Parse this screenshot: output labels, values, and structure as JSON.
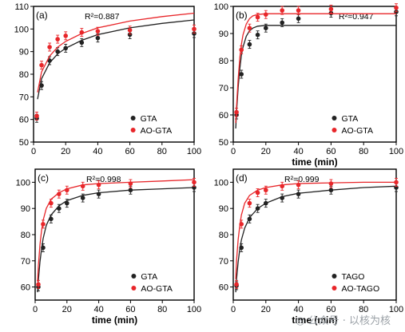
{
  "colors": {
    "black": "#222222",
    "red": "#e8262a"
  },
  "watermark": {
    "icon": "wechat-icon",
    "text": "公众号 · 以核为核"
  },
  "chart_data": [
    {
      "type": "scatter",
      "panel": "(a)",
      "r2": "R²=0.887",
      "xlabel": "",
      "ylabel": "",
      "xlim": [
        0,
        100
      ],
      "ylim": [
        50,
        110
      ],
      "xticks": [
        0,
        20,
        40,
        60,
        80,
        100
      ],
      "yticks": [
        50,
        60,
        70,
        80,
        90,
        100,
        110
      ],
      "legend": "bottom-right",
      "series": [
        {
          "name": "GTA",
          "color": "#222222",
          "x": [
            2,
            5,
            10,
            15,
            20,
            30,
            40,
            60,
            100
          ],
          "y": [
            60.5,
            75,
            86,
            90,
            91.5,
            94,
            96,
            97.5,
            98
          ],
          "fit_x": [
            2.5,
            5,
            10,
            15,
            20,
            30,
            40,
            60,
            80,
            100
          ],
          "fit_y": [
            69,
            78,
            85,
            89,
            91.5,
            95,
            97.5,
            100.5,
            102.5,
            104
          ]
        },
        {
          "name": "AO-GTA",
          "color": "#e8262a",
          "x": [
            2,
            5,
            10,
            15,
            20,
            30,
            40,
            60,
            100
          ],
          "y": [
            61.5,
            84,
            92,
            95.5,
            97,
            98.5,
            99,
            99.5,
            100
          ],
          "fit_x": [
            2.5,
            5,
            10,
            15,
            20,
            30,
            40,
            60,
            80,
            100
          ],
          "fit_y": [
            72,
            81,
            88,
            92,
            94.5,
            98,
            100.5,
            103.5,
            105.5,
            107
          ]
        }
      ]
    },
    {
      "type": "scatter",
      "panel": "(b)",
      "r2": "R²=0.947",
      "xlabel": "time (min)",
      "ylabel": "",
      "xlim": [
        0,
        100
      ],
      "ylim": [
        50,
        100
      ],
      "xticks": [
        0,
        20,
        40,
        60,
        80,
        100
      ],
      "yticks": [
        50,
        60,
        70,
        80,
        90,
        100
      ],
      "legend": "bottom-right",
      "series": [
        {
          "name": "GTA",
          "color": "#222222",
          "x": [
            2,
            5,
            10,
            15,
            20,
            30,
            40,
            60,
            100
          ],
          "y": [
            60,
            75,
            86,
            89.5,
            92,
            94,
            95.5,
            97.5,
            98
          ],
          "fit_x": [
            1.5,
            2,
            3,
            4,
            5,
            6,
            8,
            10,
            12,
            15,
            20,
            30,
            50,
            100
          ],
          "fit_y": [
            55,
            61,
            70,
            77,
            82,
            85,
            89,
            91,
            92,
            92.7,
            93,
            93,
            93,
            93
          ]
        },
        {
          "name": "AO-GTA",
          "color": "#e8262a",
          "x": [
            2,
            5,
            10,
            15,
            20,
            30,
            40,
            60,
            100
          ],
          "y": [
            61,
            84,
            92,
            96,
            97,
            98.5,
            98.5,
            99,
            99.5
          ],
          "fit_x": [
            1.5,
            2,
            3,
            4,
            5,
            6,
            8,
            10,
            12,
            15,
            20,
            30,
            50,
            100
          ],
          "fit_y": [
            57,
            63,
            73,
            81,
            86,
            89.5,
            93.5,
            95.5,
            96.5,
            97,
            97.3,
            97.3,
            97.3,
            97.3
          ]
        }
      ]
    },
    {
      "type": "scatter",
      "panel": "(c)",
      "r2": "R²=0.998",
      "xlabel": "time (min)",
      "ylabel": "",
      "xlim": [
        0,
        100
      ],
      "ylim": [
        55,
        105
      ],
      "xticks": [
        0,
        20,
        40,
        60,
        80,
        100
      ],
      "yticks": [
        60,
        70,
        80,
        90,
        100
      ],
      "legend": "bottom-right",
      "series": [
        {
          "name": "GTA",
          "color": "#222222",
          "x": [
            2,
            5,
            10,
            15,
            20,
            30,
            40,
            60,
            100
          ],
          "y": [
            60,
            75,
            86,
            90,
            92,
            94,
            95.5,
            97,
            98
          ],
          "fit_x": [
            1.5,
            2,
            3,
            4,
            5,
            7,
            10,
            15,
            20,
            30,
            40,
            60,
            80,
            100
          ],
          "fit_y": [
            58,
            62.5,
            69.5,
            74.5,
            78.5,
            83.5,
            87.5,
            91,
            93,
            95,
            96,
            97,
            97.5,
            98
          ]
        },
        {
          "name": "AO-GTA",
          "color": "#e8262a",
          "x": [
            2,
            5,
            10,
            15,
            20,
            30,
            40,
            60,
            100
          ],
          "y": [
            61,
            84,
            92,
            95.5,
            97,
            98.5,
            99,
            99.5,
            100
          ],
          "fit_x": [
            1.5,
            2,
            3,
            4,
            5,
            7,
            10,
            15,
            20,
            30,
            40,
            60,
            80,
            100
          ],
          "fit_y": [
            62,
            68,
            76,
            81.5,
            85.5,
            90,
            93.5,
            96,
            97.5,
            99,
            99.5,
            100,
            100.5,
            101
          ]
        }
      ]
    },
    {
      "type": "scatter",
      "panel": "(d)",
      "r2": "R²=0.999",
      "xlabel": "time (min)",
      "ylabel": "",
      "xlim": [
        0,
        100
      ],
      "ylim": [
        55,
        105
      ],
      "xticks": [
        0,
        20,
        40,
        60,
        80,
        100
      ],
      "yticks": [
        60,
        70,
        80,
        90,
        100
      ],
      "legend": "bottom-right",
      "series": [
        {
          "name": "TAGO",
          "color": "#222222",
          "x": [
            2,
            5,
            10,
            15,
            20,
            30,
            40,
            60,
            100
          ],
          "y": [
            60.5,
            75,
            86,
            90,
            92,
            94,
            95.5,
            97,
            98
          ],
          "fit_x": [
            1.5,
            2,
            3,
            4,
            5,
            7,
            10,
            15,
            20,
            30,
            40,
            60,
            80,
            100
          ],
          "fit_y": [
            58,
            63,
            69.5,
            74.5,
            78,
            82.5,
            86.5,
            90,
            92,
            94.5,
            95.8,
            97,
            98,
            98.5
          ]
        },
        {
          "name": "AO-TAGO",
          "color": "#e8262a",
          "x": [
            2,
            5,
            10,
            15,
            20,
            30,
            40,
            60,
            100
          ],
          "y": [
            61,
            84,
            92,
            96,
            97,
            98.5,
            99,
            99.5,
            100
          ],
          "fit_x": [
            1.5,
            2,
            3,
            4,
            5,
            7,
            10,
            15,
            20,
            30,
            40,
            60,
            80,
            100
          ],
          "fit_y": [
            63,
            70,
            78,
            83.5,
            87.5,
            92,
            95,
            97,
            98,
            99,
            99.5,
            99.8,
            100,
            100
          ]
        }
      ]
    }
  ]
}
